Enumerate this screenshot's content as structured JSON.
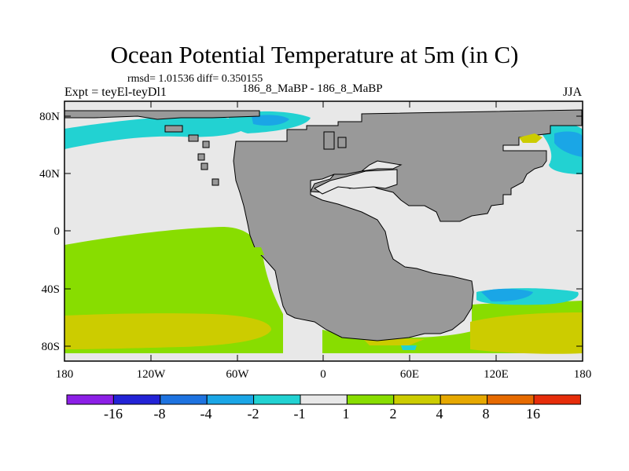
{
  "title": "Ocean Potential Temperature at 5m (in C)",
  "stats_line": "rmsd= 1.01536 diff= 0.350155",
  "experiment_label": "Expt = teyEl-teyDl1",
  "case_label": "186_8_MaBP - 186_8_MaBP",
  "season": "JJA",
  "map": {
    "projection": "cylindrical-equidistant",
    "lon_range": [
      -180,
      180
    ],
    "lat_range": [
      -90,
      90
    ],
    "y_ticks": [
      "80N",
      "40N",
      "0",
      "40S",
      "80S"
    ],
    "x_ticks": [
      "180",
      "120W",
      "60W",
      "0",
      "60E",
      "120E",
      "180"
    ],
    "land_color": "#999999",
    "no_change_color": "#e8e8e8"
  },
  "colorbar": {
    "labels": [
      "-16",
      "-8",
      "-4",
      "-2",
      "-1",
      "1",
      "2",
      "4",
      "8",
      "16"
    ],
    "colors": [
      "#8c1fe6",
      "#2323d6",
      "#1e73e0",
      "#1aa6e6",
      "#22d2d2",
      "#e8e8e8",
      "#88dd00",
      "#cccc00",
      "#e6a800",
      "#e66a00",
      "#e62d0a"
    ]
  }
}
